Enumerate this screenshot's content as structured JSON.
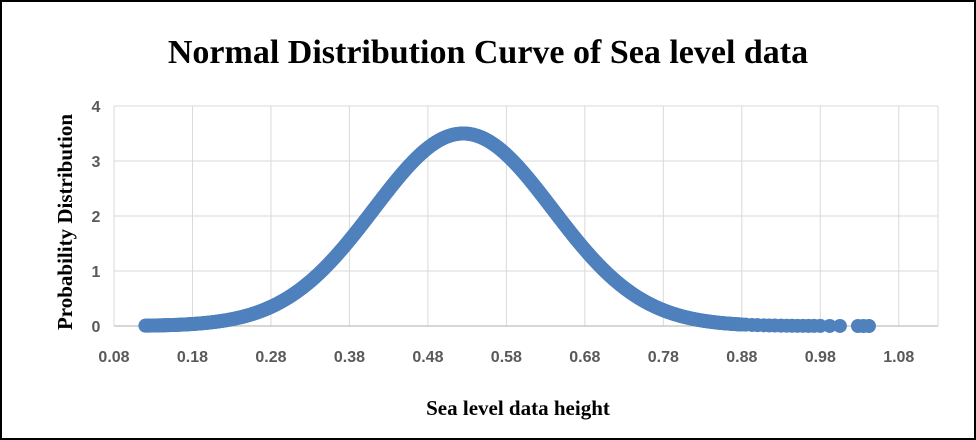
{
  "chart_data": {
    "type": "scatter",
    "title": "Normal Distribution Curve of Sea level data",
    "xlabel": "Sea level data height",
    "ylabel": "Probability Distribution",
    "xlim": [
      0.08,
      1.13
    ],
    "ylim": [
      0,
      4
    ],
    "x_ticks": [
      "0.08",
      "0.18",
      "0.28",
      "0.38",
      "0.48",
      "0.58",
      "0.68",
      "0.78",
      "0.88",
      "0.98",
      "1.08"
    ],
    "y_ticks": [
      "0",
      "1",
      "2",
      "3",
      "4"
    ],
    "grid": true,
    "legend": "none",
    "marker_color": "#4F81BD",
    "distribution": {
      "mean": 0.525,
      "std": 0.114,
      "peak": 3.5
    },
    "x_range": [
      0.12,
      1.04
    ],
    "sparse_tail_x": [
      0.885,
      0.893,
      0.9,
      0.908,
      0.915,
      0.922,
      0.93,
      0.937,
      0.944,
      0.951,
      0.958,
      0.965,
      0.972,
      0.98,
      0.992,
      1.005,
      1.028,
      1.035,
      1.042
    ]
  }
}
